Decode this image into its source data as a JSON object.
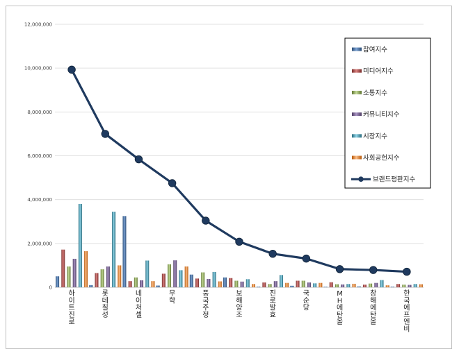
{
  "chart_data": {
    "type": "bar",
    "ylim": [
      0,
      12000000
    ],
    "yticks": [
      "0",
      "2,000,000",
      "4,000,000",
      "6,000,000",
      "8,000,000",
      "10,000,000",
      "12,000,000"
    ],
    "ytick_values": [
      0,
      2000000,
      4000000,
      6000000,
      8000000,
      10000000,
      12000000
    ],
    "grid": true,
    "legend_position": "top-right",
    "categories": [
      "하이트진로",
      "롯데칠성",
      "네이처셀",
      "무학",
      "풍국주정",
      "보해양조",
      "진로발효",
      "국순당",
      "MH에탄올",
      "창해에탄올",
      "한국에프엔비"
    ],
    "series": [
      {
        "name": "참여지수",
        "color": "#4f81bd",
        "values": [
          500000,
          100000,
          3250000,
          80000,
          580000,
          450000,
          30000,
          70000,
          20000,
          40000,
          30000
        ]
      },
      {
        "name": "미디어지수",
        "color": "#c0504d",
        "values": [
          1720000,
          650000,
          280000,
          620000,
          400000,
          420000,
          220000,
          300000,
          230000,
          120000,
          150000
        ]
      },
      {
        "name": "소통지수",
        "color": "#9bbb59",
        "values": [
          950000,
          820000,
          450000,
          1050000,
          680000,
          300000,
          150000,
          300000,
          140000,
          170000,
          120000
        ]
      },
      {
        "name": "커뮤니티지수",
        "color": "#8064a2",
        "values": [
          1300000,
          950000,
          320000,
          1230000,
          380000,
          260000,
          280000,
          220000,
          130000,
          200000,
          110000
        ]
      },
      {
        "name": "시장지수",
        "color": "#4bacc6",
        "values": [
          3800000,
          3450000,
          1220000,
          780000,
          700000,
          370000,
          560000,
          180000,
          150000,
          330000,
          150000
        ]
      },
      {
        "name": "사회공헌지수",
        "color": "#f79646",
        "values": [
          1650000,
          1000000,
          280000,
          950000,
          270000,
          150000,
          200000,
          200000,
          160000,
          90000,
          140000
        ]
      }
    ],
    "line": {
      "name": "브랜드평판지수",
      "color": "#1f3a5f",
      "values": [
        9930000,
        7000000,
        5840000,
        4750000,
        3040000,
        2080000,
        1530000,
        1310000,
        830000,
        790000,
        710000
      ]
    }
  }
}
